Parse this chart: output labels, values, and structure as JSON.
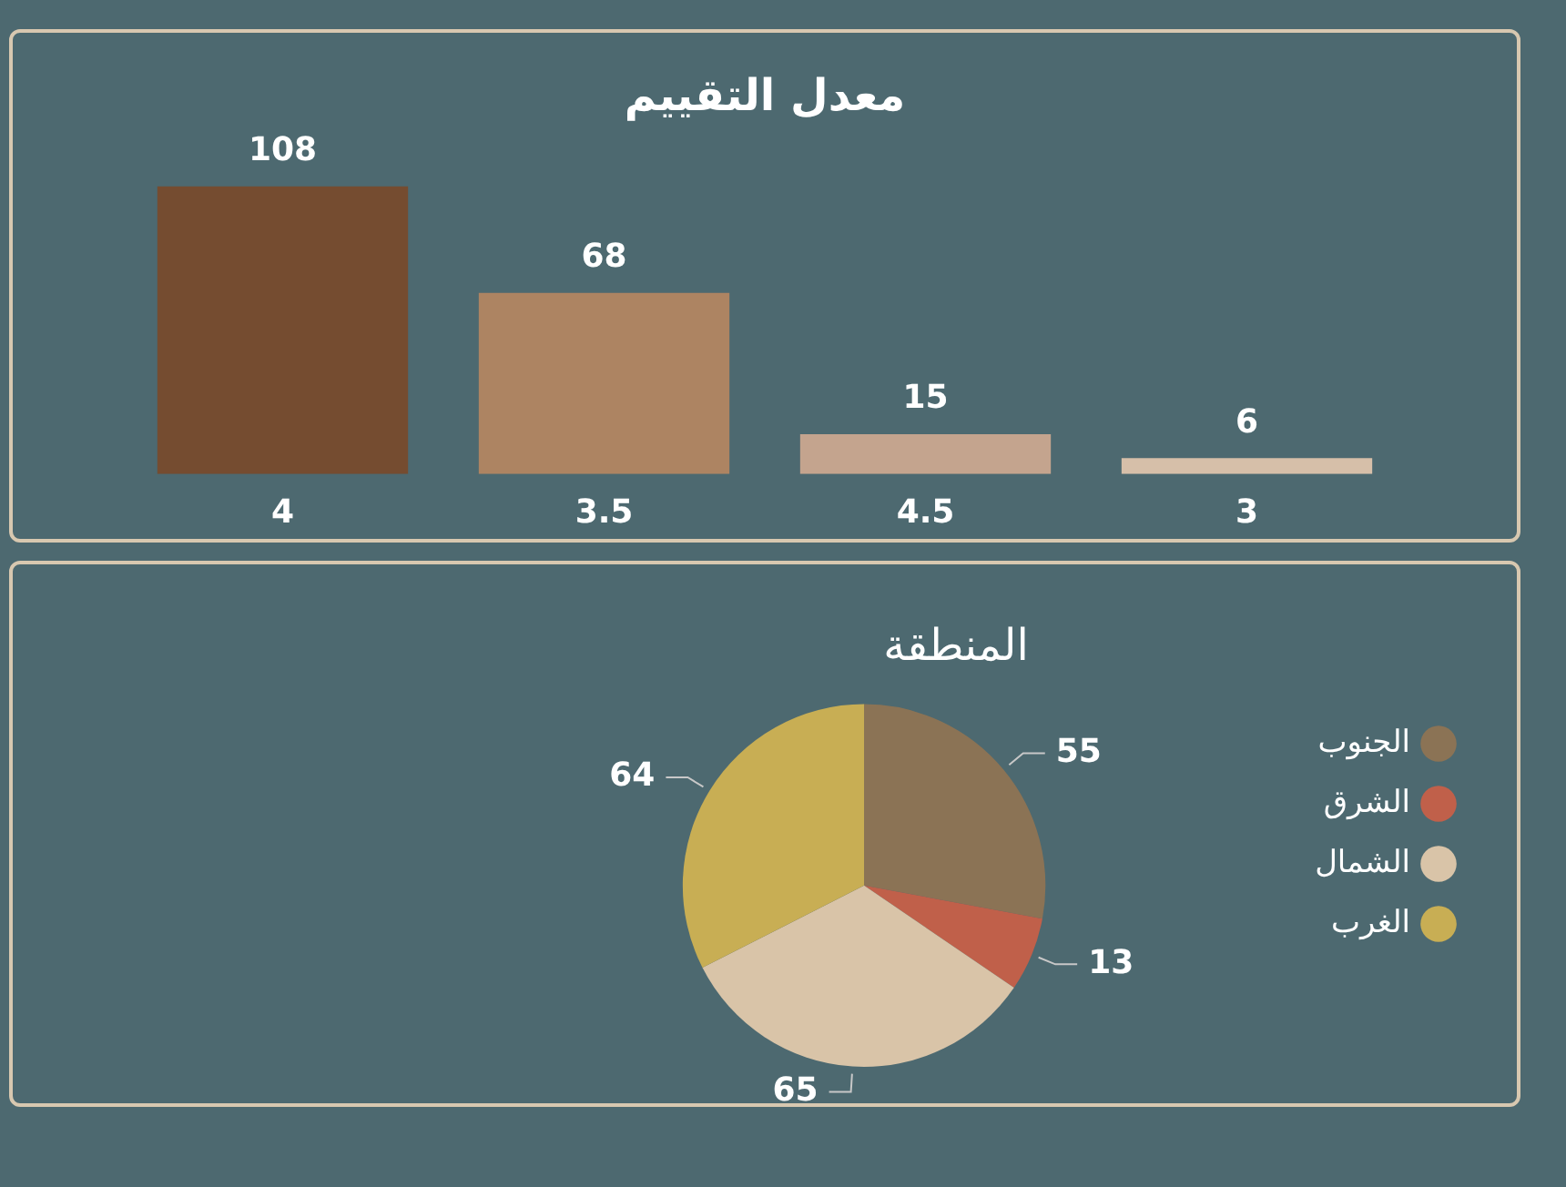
{
  "chart_data": [
    {
      "type": "bar",
      "title": "معدل التقييم",
      "categories": [
        "4",
        "3.5",
        "4.5",
        "3"
      ],
      "values": [
        108,
        68,
        15,
        6
      ],
      "colors": [
        "#754c30",
        "#ad8462",
        "#c4a48e",
        "#d6bfa9"
      ],
      "data_labels": true,
      "grid": false,
      "legend": false
    },
    {
      "type": "pie",
      "title": "المنطقة",
      "categories": [
        "الجنوب",
        "الشرق",
        "الشمال",
        "الغرب"
      ],
      "values": [
        55,
        13,
        65,
        64
      ],
      "colors": [
        "#8b7355",
        "#c0604a",
        "#d9c4a8",
        "#c8ae54"
      ],
      "data_labels": true,
      "legend": "right"
    }
  ]
}
